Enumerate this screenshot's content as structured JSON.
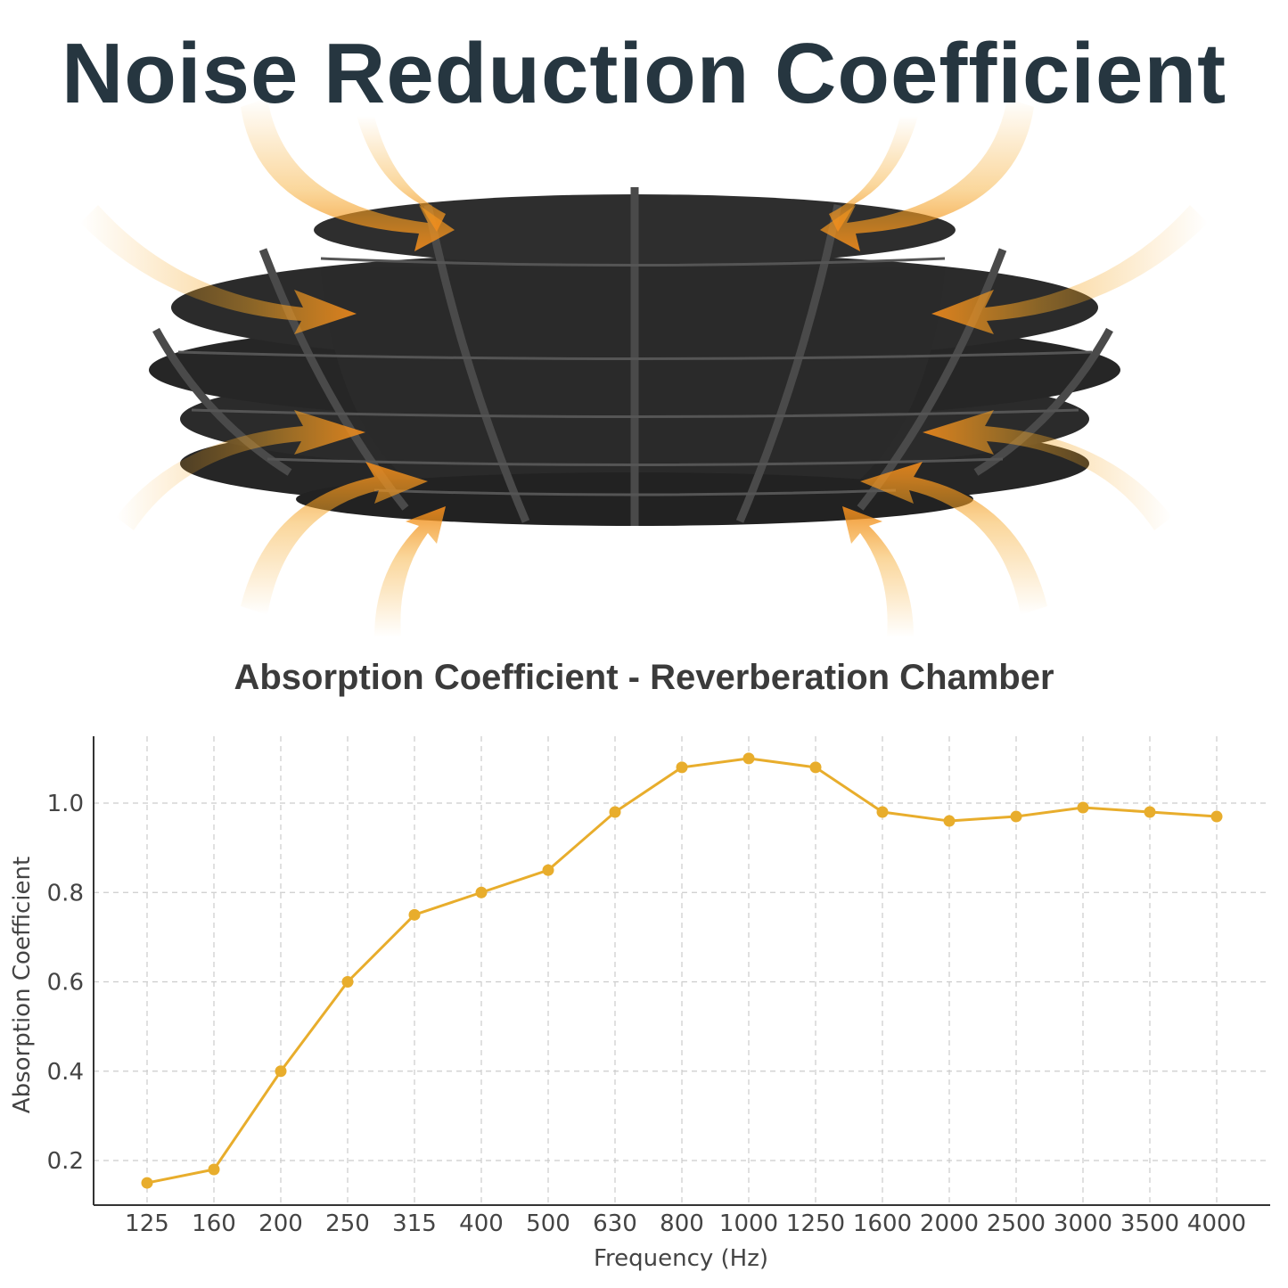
{
  "header": {
    "title": "Noise Reduction Coefficient"
  },
  "illustration": {
    "subject": "acoustic-felt-ceiling-baffle",
    "panel_color": "#2b2b2b",
    "arrow_color": "#f5a623"
  },
  "chart_data": {
    "type": "line",
    "title": "Absorption Coefficient - Reverberation Chamber",
    "xlabel": "Frequency (Hz)",
    "ylabel": "Absorption Coefficient",
    "categories": [
      "125",
      "160",
      "200",
      "250",
      "315",
      "400",
      "500",
      "630",
      "800",
      "1000",
      "1250",
      "1600",
      "2000",
      "2500",
      "3000",
      "3500",
      "4000"
    ],
    "series": [
      {
        "values": [
          0.15,
          0.18,
          0.4,
          0.6,
          0.75,
          0.8,
          0.85,
          0.98,
          1.08,
          1.1,
          1.08,
          0.98,
          0.96,
          0.97,
          0.99,
          0.98,
          0.97
        ],
        "color": "#e8ad2c"
      }
    ],
    "yticks": [
      "0.2",
      "0.4",
      "0.6",
      "0.8",
      "1.0"
    ],
    "ylim": [
      0.1,
      1.15
    ],
    "grid": true,
    "grid_style": "dashed"
  }
}
